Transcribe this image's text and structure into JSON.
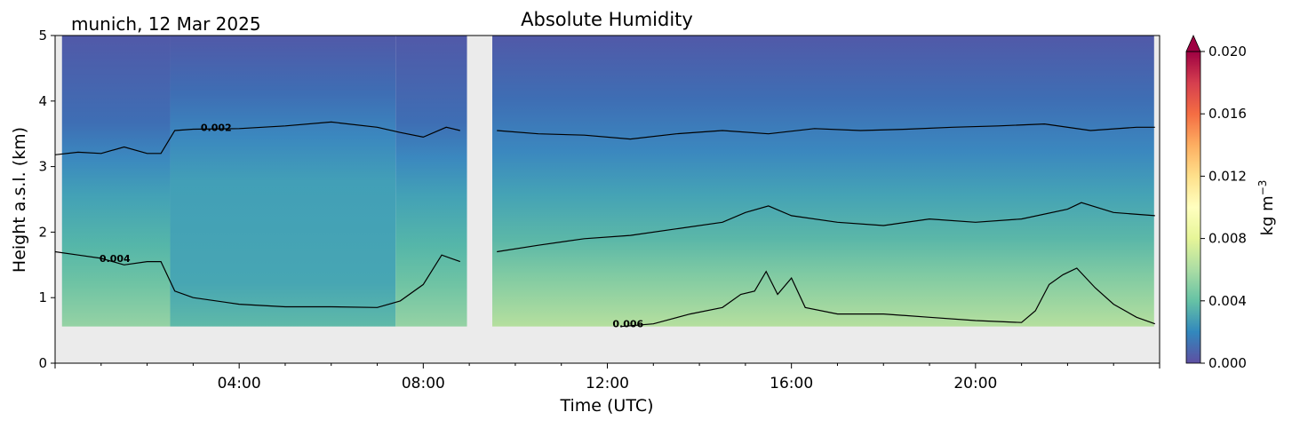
{
  "chart_data": {
    "type": "heatmap",
    "title": "Absolute Humidity",
    "location_date": "munich, 12 Mar 2025",
    "xlabel": "Time (UTC)",
    "ylabel": "Height a.s.l. (km)",
    "x_tick_labels": [
      "04:00",
      "08:00",
      "12:00",
      "16:00",
      "20:00"
    ],
    "x_ticks_hours": [
      4,
      8,
      12,
      16,
      20
    ],
    "xlim_hours": [
      0,
      24
    ],
    "ylim": [
      0,
      5
    ],
    "y_ticks": [
      0,
      1,
      2,
      3,
      4,
      5
    ],
    "y_tick_labels": [
      "0",
      "1",
      "2",
      "3",
      "4",
      "5"
    ],
    "data_gap_hours": [
      8.95,
      9.5
    ],
    "data_lower_limit_km": 0.56,
    "colorbar": {
      "label": "kg m",
      "label_exponent": "−3",
      "colormap": "Spectral_r",
      "range": [
        0.0,
        0.02
      ],
      "levels": 21,
      "extend": "max",
      "tick_values": [
        0.0,
        0.004,
        0.008,
        0.012,
        0.016,
        0.02
      ],
      "tick_labels": [
        "0.000",
        "0.004",
        "0.008",
        "0.012",
        "0.016",
        "0.020"
      ]
    },
    "contour_labels": [
      {
        "text": "0.002",
        "time_hours": 3.5,
        "height_km": 3.6
      },
      {
        "text": "0.004",
        "time_hours": 1.3,
        "height_km": 1.6
      },
      {
        "text": "0.006",
        "time_hours": 12.45,
        "height_km": 0.6
      }
    ],
    "contours": [
      {
        "level": 0.002,
        "time_hours": [
          0.0,
          0.5,
          1.0,
          1.5,
          2.0,
          2.3,
          2.6,
          3.0,
          4.0,
          5.0,
          6.0,
          7.0,
          7.5,
          8.0,
          8.5,
          8.8,
          9.6,
          10.5,
          11.5,
          12.5,
          13.5,
          14.5,
          15.5,
          16.5,
          17.5,
          18.5,
          19.5,
          20.5,
          21.5,
          22.5,
          23.5,
          23.9
        ],
        "height_km": [
          3.18,
          3.22,
          3.2,
          3.3,
          3.2,
          3.2,
          3.55,
          3.57,
          3.58,
          3.62,
          3.68,
          3.6,
          3.52,
          3.45,
          3.6,
          3.55,
          3.55,
          3.5,
          3.48,
          3.42,
          3.5,
          3.55,
          3.5,
          3.58,
          3.55,
          3.57,
          3.6,
          3.62,
          3.65,
          3.55,
          3.6,
          3.6
        ]
      },
      {
        "level": 0.004,
        "time_hours": [
          0.0,
          0.5,
          1.0,
          1.5,
          2.0,
          2.3,
          2.6,
          3.0,
          4.0,
          5.0,
          6.0,
          7.0,
          7.5,
          8.0,
          8.4,
          8.8,
          9.6,
          10.5,
          11.5,
          12.5,
          13.5,
          14.5,
          15.0,
          15.5,
          16.0,
          17.0,
          18.0,
          19.0,
          20.0,
          21.0,
          22.0,
          22.3,
          23.0,
          23.9
        ],
        "height_km": [
          1.7,
          1.65,
          1.6,
          1.5,
          1.55,
          1.55,
          1.1,
          1.0,
          0.9,
          0.86,
          0.86,
          0.85,
          0.95,
          1.2,
          1.65,
          1.55,
          1.7,
          1.8,
          1.9,
          1.95,
          2.05,
          2.15,
          2.3,
          2.4,
          2.25,
          2.15,
          2.1,
          2.2,
          2.15,
          2.2,
          2.35,
          2.45,
          2.3,
          2.25
        ]
      },
      {
        "level": 0.006,
        "time_hours": [
          12.3,
          13.0,
          13.8,
          14.5,
          14.9,
          15.2,
          15.45,
          15.7,
          16.0,
          16.3,
          17.0,
          18.0,
          19.0,
          20.0,
          21.0,
          21.3,
          21.6,
          21.9,
          22.2,
          22.6,
          23.0,
          23.5,
          23.9
        ],
        "height_km": [
          0.56,
          0.6,
          0.75,
          0.85,
          1.05,
          1.1,
          1.4,
          1.05,
          1.3,
          0.85,
          0.75,
          0.75,
          0.7,
          0.65,
          0.62,
          0.8,
          1.2,
          1.35,
          1.45,
          1.15,
          0.9,
          0.7,
          0.6
        ]
      }
    ]
  }
}
